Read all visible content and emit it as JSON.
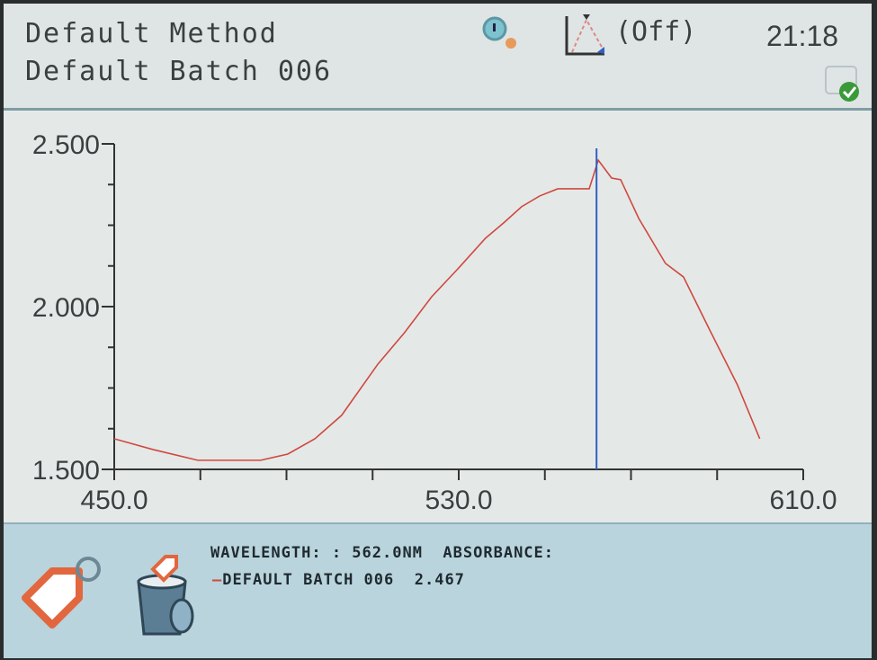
{
  "header": {
    "method": "Default Method",
    "batch": "Default Batch 006",
    "zoom_icon": "magnifier-icon",
    "peak_pick_icon": "peak-triangle-icon",
    "peak_pick_status": "(Off)",
    "time": "21:18",
    "storage_icon": "storage-ok-icon"
  },
  "chart_data": {
    "type": "line",
    "xlim": [
      450,
      610
    ],
    "ylim": [
      1.5,
      2.5
    ],
    "x_ticks": [
      "450.0",
      "530.0",
      "610.0"
    ],
    "y_ticks": [
      "1.500",
      "2.000",
      "2.500"
    ],
    "grid": false,
    "line_color": "#d0483e",
    "cursor_color": "#2f5fc4",
    "cursor_x": 562,
    "series": [
      {
        "x": [
          450,
          459,
          469.4,
          484,
          490.3,
          496.6,
          502.8,
          511.2,
          517.4,
          523.7,
          530,
          536.2,
          540.4,
          544.6,
          548.8,
          553,
          560.3,
          562.4,
          565.5,
          567.6,
          571.8,
          578,
          582.2,
          588.4,
          594.7,
          599.9
        ],
        "y": [
          1.594,
          1.561,
          1.528,
          1.528,
          1.547,
          1.594,
          1.666,
          1.823,
          1.92,
          2.03,
          2.119,
          2.21,
          2.257,
          2.307,
          2.34,
          2.362,
          2.362,
          2.45,
          2.395,
          2.39,
          2.271,
          2.133,
          2.091,
          1.925,
          1.76,
          1.594
        ]
      }
    ]
  },
  "footer": {
    "wavelength_label": "WAVELENGTH: : 562.0NM",
    "absorbance_label": "ABSORBANCE:",
    "series_name": "DEFAULT BATCH 006",
    "series_value": "2.467",
    "tag_icon": "tag-icon",
    "trash_icon": "trash-bin-icon"
  }
}
